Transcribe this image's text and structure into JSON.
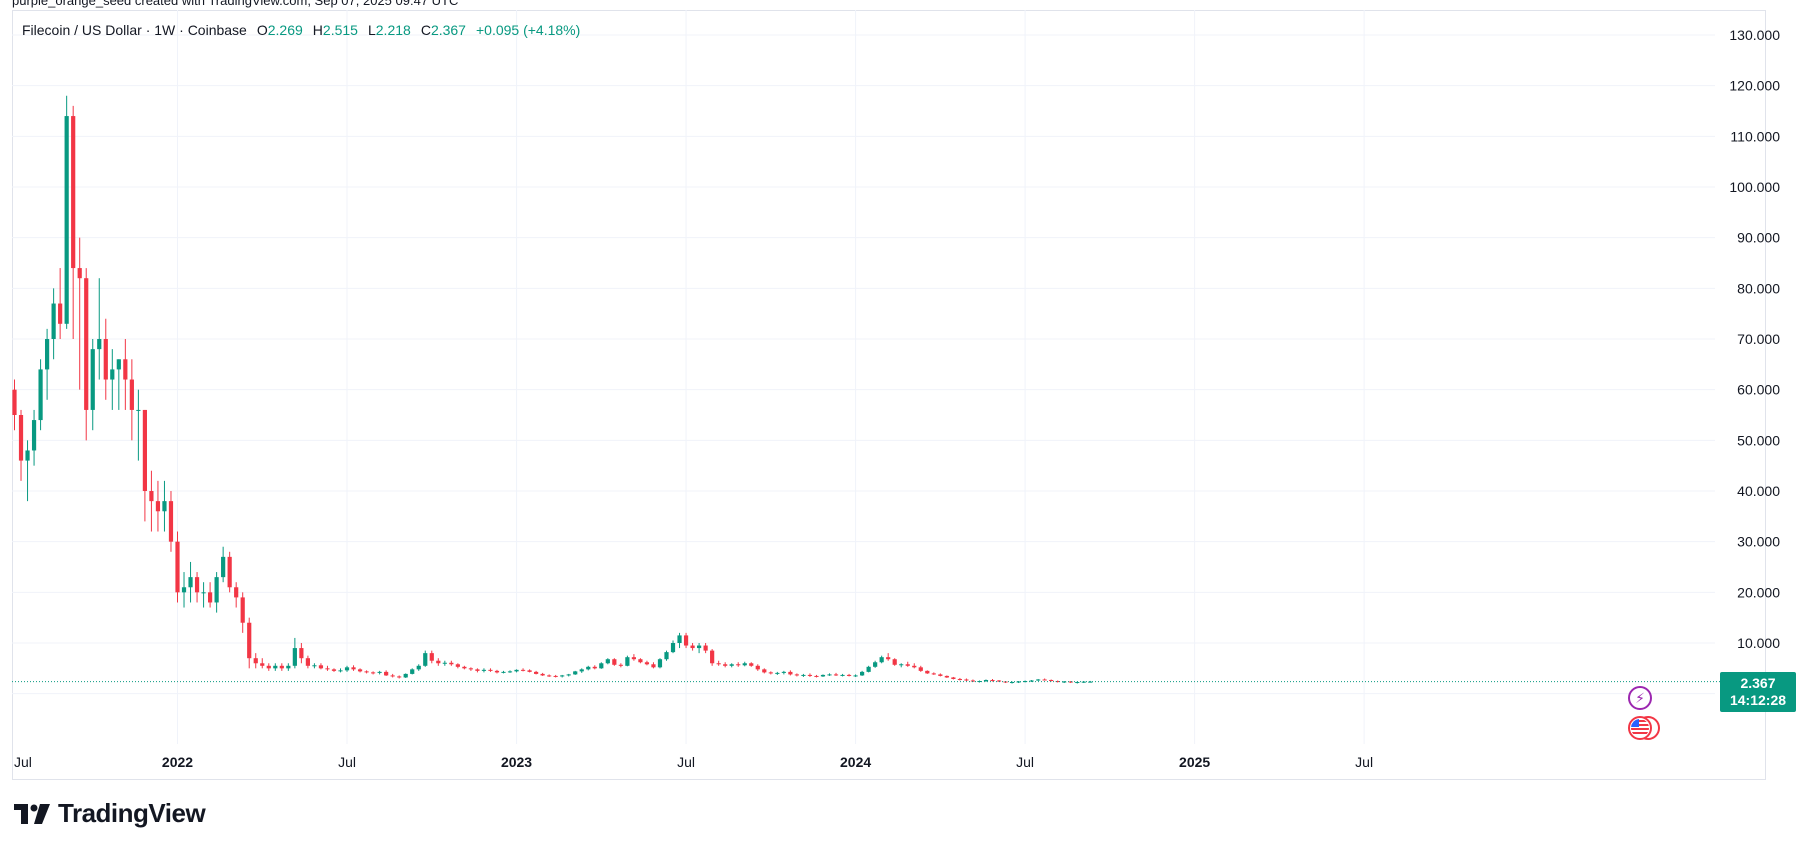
{
  "caption": "purple_orange_seed created with TradingView.com, Sep 07, 2025 09:47 UTC",
  "legend": {
    "symbol": "Filecoin / US Dollar · 1W · Coinbase",
    "o_label": "O",
    "o_value": "2.269",
    "h_label": "H",
    "h_value": "2.515",
    "l_label": "L",
    "l_value": "2.218",
    "c_label": "C",
    "c_value": "2.367",
    "change": "+0.095 (+4.18%)"
  },
  "price_badge": {
    "price": "2.367",
    "countdown": "14:12:28"
  },
  "logo": {
    "text": "TradingView"
  },
  "icons": {
    "event_bolt": "bolt-icon",
    "event_flag": "us-flag-icon",
    "logo": "tradingview-logo-icon"
  },
  "colors": {
    "up": "#089981",
    "down": "#f23645",
    "grid": "#f0f3fa",
    "axis_text": "#131722"
  },
  "chart_data": {
    "type": "candlestick",
    "title": "Filecoin / US Dollar · 1W · Coinbase",
    "interval": "1W",
    "y_axis": {
      "ticks": [
        "130.000",
        "120.000",
        "110.000",
        "100.000",
        "90.000",
        "80.000",
        "70.000",
        "60.000",
        "50.000",
        "40.000",
        "30.000",
        "20.000",
        "10.000"
      ],
      "ylim": [
        -10,
        133
      ],
      "position": "right"
    },
    "x_axis": {
      "ticks": [
        {
          "label": "Jul",
          "bold": false,
          "week": -1
        },
        {
          "label": "2022",
          "bold": true,
          "week": 25
        },
        {
          "label": "Jul",
          "bold": false,
          "week": 51
        },
        {
          "label": "2023",
          "bold": true,
          "week": 77
        },
        {
          "label": "Jul",
          "bold": false,
          "week": 103
        },
        {
          "label": "2024",
          "bold": true,
          "week": 129
        },
        {
          "label": "Jul",
          "bold": false,
          "week": 155
        },
        {
          "label": "2025",
          "bold": true,
          "week": 181
        },
        {
          "label": "Jul",
          "bold": false,
          "week": 207
        }
      ]
    },
    "last_price": 2.367,
    "candles": [
      [
        60,
        62,
        52,
        55
      ],
      [
        55,
        56,
        42,
        46
      ],
      [
        46,
        50,
        38,
        48
      ],
      [
        48,
        56,
        45,
        54
      ],
      [
        54,
        66,
        52,
        64
      ],
      [
        64,
        72,
        58,
        70
      ],
      [
        70,
        80,
        66,
        77
      ],
      [
        77,
        84,
        70,
        73
      ],
      [
        73,
        118,
        72,
        114
      ],
      [
        114,
        116,
        70,
        84
      ],
      [
        84,
        90,
        60,
        82
      ],
      [
        82,
        84,
        50,
        56
      ],
      [
        56,
        70,
        52,
        68
      ],
      [
        68,
        82,
        62,
        70
      ],
      [
        70,
        74,
        58,
        62
      ],
      [
        62,
        68,
        56,
        64
      ],
      [
        64,
        66,
        56,
        66
      ],
      [
        66,
        70,
        56,
        62
      ],
      [
        62,
        66,
        50,
        56
      ],
      [
        56,
        60,
        46,
        56
      ],
      [
        56,
        56,
        34,
        40
      ],
      [
        40,
        44,
        32,
        38
      ],
      [
        38,
        42,
        32,
        36
      ],
      [
        36,
        42,
        32,
        38
      ],
      [
        38,
        40,
        28,
        30
      ],
      [
        30,
        32,
        18,
        20
      ],
      [
        20,
        24,
        17,
        21
      ],
      [
        21,
        26,
        18,
        23
      ],
      [
        23,
        24,
        18,
        20
      ],
      [
        20,
        22,
        17,
        20
      ],
      [
        20,
        22,
        17,
        18
      ],
      [
        18,
        24,
        16,
        23
      ],
      [
        23,
        29,
        22,
        27
      ],
      [
        27,
        28,
        20,
        21
      ],
      [
        21,
        22,
        17,
        19
      ],
      [
        19,
        20,
        12,
        14
      ],
      [
        14,
        15,
        5,
        7
      ],
      [
        7,
        8,
        5,
        6
      ],
      [
        6,
        7,
        5,
        5.5
      ],
      [
        5.5,
        6,
        4.5,
        5
      ],
      [
        5,
        6,
        4.5,
        5.5
      ],
      [
        5.5,
        6,
        4.5,
        5
      ],
      [
        5,
        6,
        4.5,
        5.5
      ],
      [
        5.5,
        11,
        5,
        9
      ],
      [
        9,
        10,
        6,
        7
      ],
      [
        7,
        7.5,
        5,
        5.5
      ],
      [
        5.5,
        6,
        5,
        5.6
      ],
      [
        5.6,
        6,
        4.8,
        5
      ],
      [
        5,
        5.5,
        4.5,
        4.8
      ],
      [
        4.8,
        5,
        4.3,
        4.5
      ],
      [
        4.5,
        5,
        4.2,
        4.6
      ],
      [
        4.6,
        5.5,
        4.3,
        5.2
      ],
      [
        5.2,
        5.6,
        4.5,
        4.8
      ],
      [
        4.8,
        5,
        4.2,
        4.4
      ],
      [
        4.4,
        4.6,
        4,
        4.2
      ],
      [
        4.2,
        4.4,
        3.8,
        4.1
      ],
      [
        4.1,
        4.5,
        3.8,
        4.3
      ],
      [
        4.3,
        4.6,
        3.5,
        3.6
      ],
      [
        3.6,
        3.9,
        3.2,
        3.4
      ],
      [
        3.4,
        3.6,
        3,
        3.2
      ],
      [
        3.2,
        4,
        3.1,
        3.9
      ],
      [
        3.9,
        5,
        3.8,
        4.8
      ],
      [
        4.8,
        5.8,
        4.5,
        5.5
      ],
      [
        5.5,
        8.5,
        5.3,
        8
      ],
      [
        8,
        8.5,
        6,
        6.5
      ],
      [
        6.5,
        7,
        5.5,
        6
      ],
      [
        6,
        6.5,
        5.5,
        6.1
      ],
      [
        6.1,
        6.5,
        5.5,
        5.8
      ],
      [
        5.8,
        6,
        5,
        5.3
      ],
      [
        5.3,
        5.5,
        4.8,
        5
      ],
      [
        5,
        5.2,
        4.5,
        4.8
      ],
      [
        4.8,
        5,
        4.2,
        4.5
      ],
      [
        4.5,
        5,
        4.2,
        4.7
      ],
      [
        4.7,
        5,
        4.3,
        4.5
      ],
      [
        4.5,
        4.7,
        4,
        4.2
      ],
      [
        4.2,
        4.5,
        4,
        4.3
      ],
      [
        4.3,
        4.6,
        4.1,
        4.4
      ],
      [
        4.4,
        4.8,
        4.2,
        4.7
      ],
      [
        4.7,
        5,
        4.4,
        4.6
      ],
      [
        4.6,
        4.8,
        4.2,
        4.3
      ],
      [
        4.3,
        4.5,
        3.8,
        3.9
      ],
      [
        3.9,
        4.1,
        3.5,
        3.6
      ],
      [
        3.6,
        3.8,
        3.3,
        3.5
      ],
      [
        3.5,
        3.7,
        3.2,
        3.4
      ],
      [
        3.4,
        3.7,
        3.2,
        3.6
      ],
      [
        3.6,
        3.9,
        3.4,
        3.8
      ],
      [
        3.8,
        4.5,
        3.7,
        4.4
      ],
      [
        4.4,
        5,
        4.1,
        4.8
      ],
      [
        4.8,
        5.5,
        4.6,
        5.3
      ],
      [
        5.3,
        5.6,
        4.8,
        5
      ],
      [
        5,
        6.2,
        4.9,
        6
      ],
      [
        6,
        7,
        5.8,
        6.8
      ],
      [
        6.8,
        7,
        5.5,
        5.7
      ],
      [
        5.7,
        6,
        5.2,
        5.5
      ],
      [
        5.5,
        7.5,
        5.4,
        7.2
      ],
      [
        7.2,
        7.8,
        6.5,
        6.8
      ],
      [
        6.8,
        7,
        6,
        6.2
      ],
      [
        6.2,
        6.5,
        5.6,
        5.8
      ],
      [
        5.8,
        6.2,
        5,
        5.2
      ],
      [
        5.2,
        7,
        5,
        6.8
      ],
      [
        6.8,
        8.5,
        6.5,
        8.2
      ],
      [
        8.2,
        10.5,
        8,
        10
      ],
      [
        10,
        12,
        9,
        11.5
      ],
      [
        11.5,
        12,
        9,
        9.5
      ],
      [
        9.5,
        10,
        8.5,
        9
      ],
      [
        9,
        10,
        8,
        9.5
      ],
      [
        9.5,
        10,
        8,
        8.5
      ],
      [
        8.5,
        8.8,
        5.5,
        6
      ],
      [
        6,
        6.5,
        5.5,
        5.8
      ],
      [
        5.8,
        6.2,
        5.2,
        5.5
      ],
      [
        5.5,
        6,
        5.2,
        5.8
      ],
      [
        5.8,
        6.2,
        5.3,
        5.6
      ],
      [
        5.6,
        6.3,
        5.4,
        6
      ],
      [
        6,
        6.2,
        5.3,
        5.5
      ],
      [
        5.5,
        5.8,
        4.5,
        4.8
      ],
      [
        4.8,
        5,
        4,
        4.2
      ],
      [
        4.2,
        4.4,
        3.8,
        4
      ],
      [
        4,
        4.3,
        3.7,
        4.1
      ],
      [
        4.1,
        4.5,
        3.8,
        4.3
      ],
      [
        4.3,
        4.6,
        3.6,
        3.8
      ],
      [
        3.8,
        4,
        3.4,
        3.6
      ],
      [
        3.6,
        3.9,
        3.3,
        3.7
      ],
      [
        3.7,
        4,
        3.3,
        3.5
      ],
      [
        3.5,
        3.7,
        3.2,
        3.4
      ],
      [
        3.4,
        3.8,
        3.3,
        3.7
      ],
      [
        3.7,
        4,
        3.5,
        3.8
      ],
      [
        3.8,
        4.1,
        3.5,
        3.6
      ],
      [
        3.6,
        3.9,
        3.4,
        3.7
      ],
      [
        3.7,
        3.9,
        3.4,
        3.5
      ],
      [
        3.5,
        3.8,
        3.3,
        3.6
      ],
      [
        3.6,
        4.5,
        3.5,
        4.3
      ],
      [
        4.3,
        5.5,
        4.2,
        5.3
      ],
      [
        5.3,
        6.5,
        5.1,
        6.2
      ],
      [
        6.2,
        7.5,
        6,
        7.2
      ],
      [
        7.2,
        8,
        6.5,
        6.8
      ],
      [
        6.8,
        7,
        5.5,
        5.7
      ],
      [
        5.7,
        6,
        5.2,
        5.8
      ],
      [
        5.8,
        6.3,
        5.3,
        5.5
      ],
      [
        5.5,
        6,
        5,
        5.2
      ],
      [
        5.2,
        5.5,
        4.3,
        4.5
      ],
      [
        4.5,
        4.6,
        3.9,
        4
      ],
      [
        4,
        4.2,
        3.7,
        3.8
      ],
      [
        3.8,
        4,
        3.4,
        3.5
      ],
      [
        3.5,
        3.6,
        3.1,
        3.2
      ],
      [
        3.2,
        3.3,
        2.8,
        2.9
      ],
      [
        2.9,
        3.1,
        2.6,
        2.8
      ],
      [
        2.8,
        3,
        2.5,
        2.6
      ],
      [
        2.6,
        2.8,
        2.3,
        2.4
      ],
      [
        2.4,
        2.6,
        2.2,
        2.5
      ],
      [
        2.5,
        2.8,
        2.3,
        2.7
      ],
      [
        2.7,
        2.9,
        2.4,
        2.6
      ],
      [
        2.6,
        2.7,
        2.3,
        2.4
      ],
      [
        2.4,
        2.5,
        2.1,
        2.2
      ],
      [
        2.2,
        2.4,
        2,
        2.3
      ],
      [
        2.3,
        2.5,
        2.1,
        2.4
      ],
      [
        2.4,
        2.6,
        2.2,
        2.5
      ],
      [
        2.5,
        2.7,
        2.3,
        2.6
      ],
      [
        2.6,
        2.9,
        2.5,
        2.8
      ],
      [
        2.8,
        3,
        2.6,
        2.7
      ],
      [
        2.7,
        2.8,
        2.4,
        2.5
      ],
      [
        2.5,
        2.6,
        2.2,
        2.3
      ],
      [
        2.3,
        2.5,
        2.1,
        2.4
      ],
      [
        2.4,
        2.5,
        2.1,
        2.2
      ],
      [
        2.2,
        2.4,
        2,
        2.3
      ],
      [
        2.3,
        2.5,
        2.1,
        2.37
      ],
      [
        2.269,
        2.515,
        2.218,
        2.367
      ]
    ]
  }
}
